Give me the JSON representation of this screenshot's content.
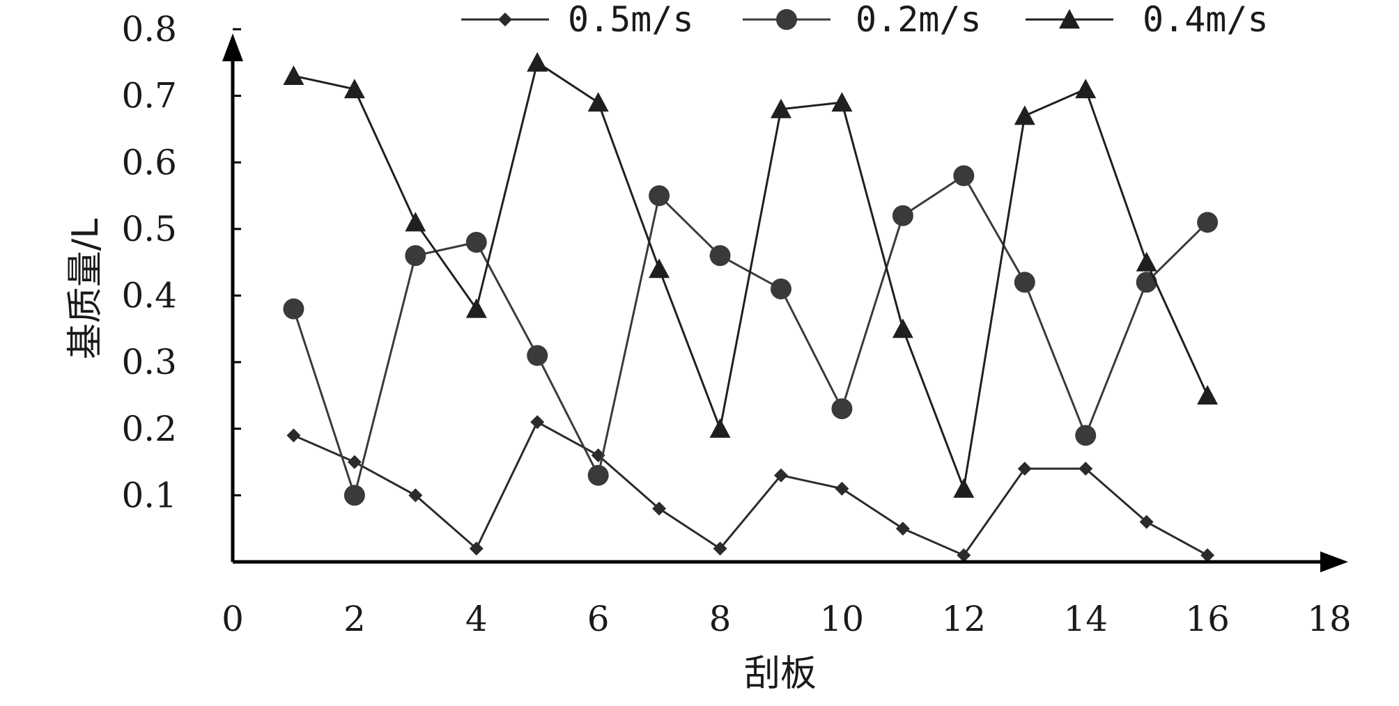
{
  "chart_data": {
    "type": "line",
    "title": "",
    "xlabel": "刮板",
    "ylabel": "基质量/L",
    "xlim": [
      0,
      18
    ],
    "ylim": [
      0,
      0.8
    ],
    "x_ticks": [
      0,
      2,
      4,
      6,
      8,
      10,
      12,
      14,
      16,
      18
    ],
    "y_ticks": [
      0.1,
      0.2,
      0.3,
      0.4,
      0.5,
      0.6,
      0.7,
      0.8
    ],
    "x_tick_labels": [
      "0",
      "2",
      "4",
      "6",
      "8",
      "10",
      "12",
      "14",
      "16",
      "18"
    ],
    "y_tick_labels": [
      "0.1",
      "0.2",
      "0.3",
      "0.4",
      "0.5",
      "0.6",
      "0.7",
      "0.8"
    ],
    "grid": false,
    "legend_position": "top",
    "x": [
      1,
      2,
      3,
      4,
      5,
      6,
      7,
      8,
      9,
      10,
      11,
      12,
      13,
      14,
      15,
      16
    ],
    "series": [
      {
        "name": "0.5m/s",
        "marker": "diamond",
        "color": "#2b2b2b",
        "values": [
          0.19,
          0.15,
          0.1,
          0.02,
          0.21,
          0.16,
          0.08,
          0.02,
          0.13,
          0.11,
          0.05,
          0.01,
          0.14,
          0.14,
          0.06,
          0.01
        ]
      },
      {
        "name": "0.2m/s",
        "marker": "circle",
        "color": "#3a3a3a",
        "values": [
          0.38,
          0.1,
          0.46,
          0.48,
          0.31,
          0.13,
          0.55,
          0.46,
          0.41,
          0.23,
          0.52,
          0.58,
          0.42,
          0.19,
          0.42,
          0.51
        ]
      },
      {
        "name": "0.4m/s",
        "marker": "triangle",
        "color": "#1f1f1f",
        "values": [
          0.73,
          0.71,
          0.51,
          0.38,
          0.75,
          0.69,
          0.44,
          0.2,
          0.68,
          0.69,
          0.35,
          0.11,
          0.67,
          0.71,
          0.45,
          0.25
        ]
      }
    ]
  }
}
